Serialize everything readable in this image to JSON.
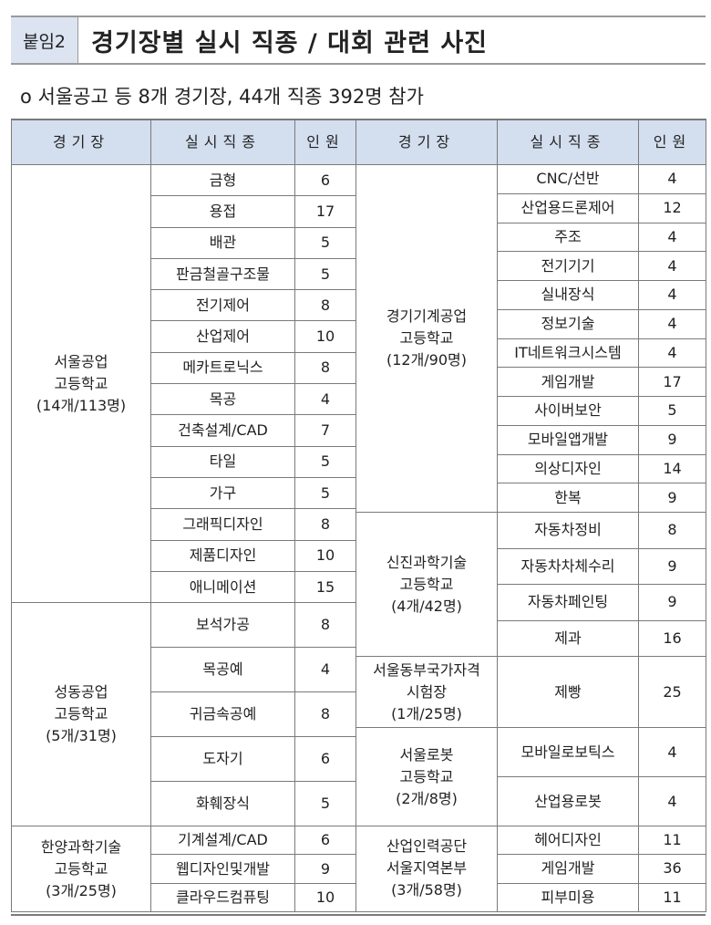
{
  "title": {
    "tag": "붙임2",
    "text": "경기장별 실시 직종 / 대회 관련 사진"
  },
  "summary": "o  서울공고 등 8개 경기장, 44개 직종 392명 참가",
  "headers": {
    "venue": "경기장",
    "event": "실시직종",
    "count": "인원"
  },
  "colors": {
    "header_bg": "#d3deee",
    "title_tag_bg": "#dce4f2"
  },
  "left": [
    {
      "venue": "서울공업\n고등학교\n(14개/113명)",
      "events": [
        {
          "name": "금형",
          "count": "6"
        },
        {
          "name": "용접",
          "count": "17"
        },
        {
          "name": "배관",
          "count": "5"
        },
        {
          "name": "판금철골구조물",
          "count": "5"
        },
        {
          "name": "전기제어",
          "count": "8"
        },
        {
          "name": "산업제어",
          "count": "10"
        },
        {
          "name": "메카트로닉스",
          "count": "8"
        },
        {
          "name": "목공",
          "count": "4"
        },
        {
          "name": "건축설계/CAD",
          "count": "7"
        },
        {
          "name": "타일",
          "count": "5"
        },
        {
          "name": "가구",
          "count": "5"
        },
        {
          "name": "그래픽디자인",
          "count": "8"
        },
        {
          "name": "제품디자인",
          "count": "10"
        },
        {
          "name": "애니메이션",
          "count": "15"
        }
      ]
    },
    {
      "venue": "성동공업\n고등학교\n(5개/31명)",
      "events": [
        {
          "name": "보석가공",
          "count": "8"
        },
        {
          "name": "목공예",
          "count": "4"
        },
        {
          "name": "귀금속공예",
          "count": "8"
        },
        {
          "name": "도자기",
          "count": "6"
        },
        {
          "name": "화훼장식",
          "count": "5"
        }
      ]
    },
    {
      "venue": "한양과학기술\n고등학교\n(3개/25명)",
      "events": [
        {
          "name": "기계설계/CAD",
          "count": "6"
        },
        {
          "name": "웹디자인및개발",
          "count": "9"
        },
        {
          "name": "클라우드컴퓨팅",
          "count": "10"
        }
      ]
    }
  ],
  "right": [
    {
      "venue": "경기기계공업\n고등학교\n(12개/90명)",
      "events": [
        {
          "name": "CNC/선반",
          "count": "4"
        },
        {
          "name": "산업용드론제어",
          "count": "12"
        },
        {
          "name": "주조",
          "count": "4"
        },
        {
          "name": "전기기기",
          "count": "4"
        },
        {
          "name": "실내장식",
          "count": "4"
        },
        {
          "name": "정보기술",
          "count": "4"
        },
        {
          "name": "IT네트워크시스템",
          "count": "4"
        },
        {
          "name": "게임개발",
          "count": "17"
        },
        {
          "name": "사이버보안",
          "count": "5"
        },
        {
          "name": "모바일앱개발",
          "count": "9"
        },
        {
          "name": "의상디자인",
          "count": "14"
        },
        {
          "name": "한복",
          "count": "9"
        }
      ]
    },
    {
      "venue": "신진과학기술\n고등학교\n(4개/42명)",
      "events": [
        {
          "name": "자동차정비",
          "count": "8"
        },
        {
          "name": "자동차차체수리",
          "count": "9"
        },
        {
          "name": "자동차페인팅",
          "count": "9"
        },
        {
          "name": "제과",
          "count": "16"
        }
      ]
    },
    {
      "venue": "서울동부국가자격\n시험장\n(1개/25명)",
      "events": [
        {
          "name": "제빵",
          "count": "25"
        }
      ]
    },
    {
      "venue": "서울로봇\n고등학교\n(2개/8명)",
      "events": [
        {
          "name": "모바일로보틱스",
          "count": "4"
        },
        {
          "name": "산업용로봇",
          "count": "4"
        }
      ]
    },
    {
      "venue": "산업인력공단\n서울지역본부\n(3개/58명)",
      "events": [
        {
          "name": "헤어디자인",
          "count": "11"
        },
        {
          "name": "게임개발",
          "count": "36"
        },
        {
          "name": "피부미용",
          "count": "11"
        }
      ]
    }
  ]
}
